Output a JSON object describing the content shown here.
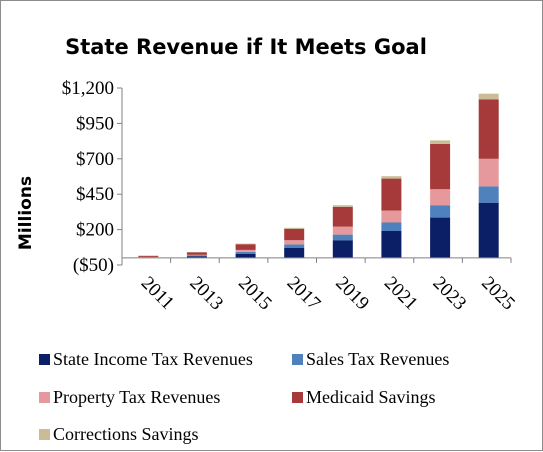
{
  "chart_data": {
    "type": "bar",
    "stacked": true,
    "title": "State Revenue if It Meets Goal",
    "ylabel": "Millions",
    "xlabel": "",
    "categories": [
      "2011",
      "2013",
      "2015",
      "2017",
      "2019",
      "2021",
      "2023",
      "2025"
    ],
    "ylim": [
      -50,
      1200
    ],
    "yticks": [
      -50,
      200,
      450,
      700,
      950,
      1200
    ],
    "ytick_labels": [
      "($50)",
      "$200",
      "$450",
      "$700",
      "$950",
      "$1,200"
    ],
    "grid": false,
    "legend_position": "bottom",
    "series": [
      {
        "name": "State Income Tax Revenues",
        "color": "#0a1f66",
        "values": [
          3,
          12,
          30,
          70,
          125,
          190,
          285,
          390
        ]
      },
      {
        "name": "Sales Tax Revenues",
        "color": "#4f81bd",
        "values": [
          2,
          5,
          12,
          25,
          40,
          60,
          85,
          115
        ]
      },
      {
        "name": "Property Tax Revenues",
        "color": "#e6999c",
        "values": [
          2,
          5,
          15,
          30,
          55,
          85,
          115,
          195
        ]
      },
      {
        "name": "Medicaid Savings",
        "color": "#a63a3a",
        "values": [
          8,
          18,
          40,
          80,
          140,
          225,
          320,
          420
        ]
      },
      {
        "name": "Corrections Savings",
        "color": "#c9bc96",
        "values": [
          1,
          2,
          4,
          8,
          12,
          17,
          25,
          40
        ]
      }
    ]
  }
}
